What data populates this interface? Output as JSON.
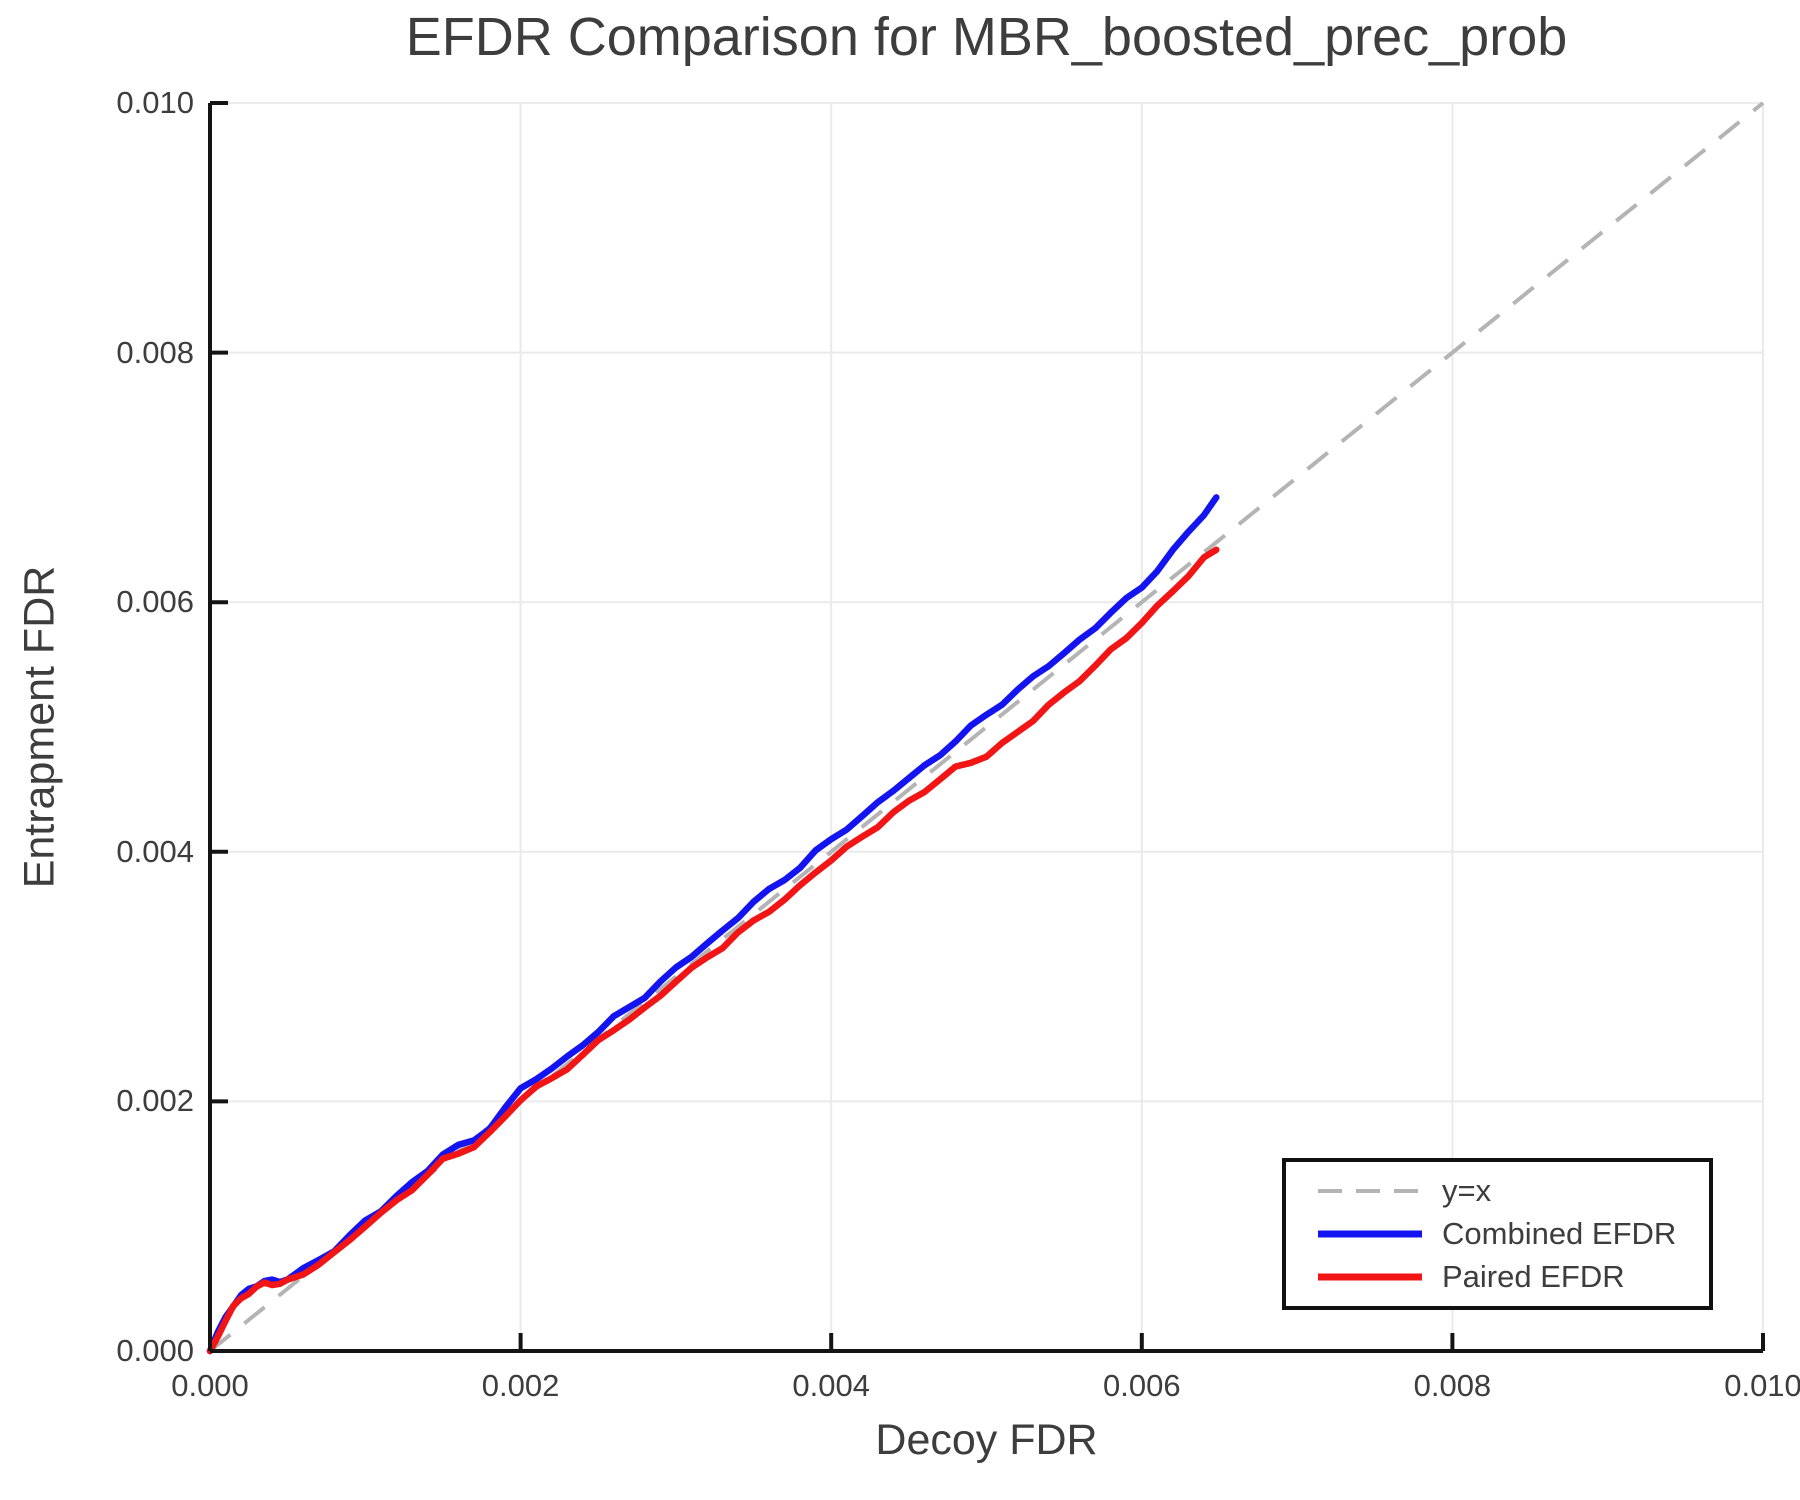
{
  "title": "EFDR Comparison for MBR_boosted_prec_prob",
  "colors": {
    "combined_line": "#1414f0",
    "paired_line": "#f21515",
    "reference_line": "#b4b4b4",
    "gridline": "#eaeaea",
    "spine": "#141414",
    "text": "#3d3d3d",
    "legend_border": "#111111",
    "background": "#ffffff"
  },
  "chart_data": {
    "type": "line",
    "title": "EFDR Comparison for MBR_boosted_prec_prob",
    "xlabel": "Decoy FDR",
    "ylabel": "Entrapment FDR",
    "xlim": [
      0.0,
      0.01
    ],
    "ylim": [
      0.0,
      0.01
    ],
    "grid": true,
    "legend_position": "lower right",
    "x_ticks": [
      0.0,
      0.002,
      0.004,
      0.006,
      0.008,
      0.01
    ],
    "y_ticks": [
      0.0,
      0.002,
      0.004,
      0.006,
      0.008,
      0.01
    ],
    "x_tick_labels": [
      "0.000",
      "0.002",
      "0.004",
      "0.006",
      "0.008",
      "0.010"
    ],
    "y_tick_labels": [
      "0.000",
      "0.002",
      "0.004",
      "0.006",
      "0.008",
      "0.010"
    ],
    "x": [
      0.0,
      5e-05,
      0.0001,
      0.00015,
      0.0002,
      0.00025,
      0.0003,
      0.00035,
      0.0004,
      0.00045,
      0.0005,
      0.0006,
      0.0007,
      0.0008,
      0.0009,
      0.001,
      0.0011,
      0.0012,
      0.0013,
      0.0014,
      0.0015,
      0.0016,
      0.0017,
      0.0018,
      0.0019,
      0.002,
      0.0021,
      0.0022,
      0.0023,
      0.0024,
      0.0025,
      0.0026,
      0.0027,
      0.0028,
      0.0029,
      0.003,
      0.0031,
      0.0032,
      0.0033,
      0.0034,
      0.0035,
      0.0036,
      0.0037,
      0.0038,
      0.0039,
      0.004,
      0.0041,
      0.0042,
      0.0043,
      0.0044,
      0.0045,
      0.0046,
      0.0047,
      0.0048,
      0.0049,
      0.005,
      0.0051,
      0.0052,
      0.0053,
      0.0054,
      0.0055,
      0.0056,
      0.0057,
      0.0058,
      0.0059,
      0.006,
      0.0061,
      0.0062,
      0.0063,
      0.0064,
      0.00648
    ],
    "series": [
      {
        "name": "y=x",
        "style": "dashed",
        "color": "#b4b4b4",
        "identity": true
      },
      {
        "name": "Combined EFDR",
        "style": "solid",
        "color": "#1414f0",
        "y": [
          0.0,
          0.00014,
          0.00027,
          0.00037,
          0.00044,
          0.00049,
          0.00053,
          0.00056,
          0.00056,
          0.00056,
          0.00058,
          0.00065,
          0.00073,
          0.00081,
          0.00092,
          0.00104,
          0.00113,
          0.00124,
          0.00134,
          0.00145,
          0.00158,
          0.00164,
          0.00169,
          0.00179,
          0.00194,
          0.0021,
          0.00219,
          0.00226,
          0.00235,
          0.00246,
          0.00256,
          0.00267,
          0.00276,
          0.00284,
          0.00295,
          0.00307,
          0.00317,
          0.00326,
          0.00336,
          0.00348,
          0.0036,
          0.00369,
          0.00378,
          0.00388,
          0.004,
          0.0041,
          0.00419,
          0.00428,
          0.00439,
          0.0045,
          0.00459,
          0.00468,
          0.00478,
          0.00489,
          0.005,
          0.0051,
          0.00519,
          0.00529,
          0.0054,
          0.0055,
          0.00559,
          0.00569,
          0.0058,
          0.00592,
          0.00602,
          0.00612,
          0.00626,
          0.00641,
          0.00656,
          0.00671,
          0.00684
        ]
      },
      {
        "name": "Paired EFDR",
        "style": "solid",
        "color": "#f21515",
        "y": [
          0.0,
          0.00012,
          0.00025,
          0.00035,
          0.00042,
          0.00047,
          0.00051,
          0.00054,
          0.00054,
          0.00054,
          0.00056,
          0.00062,
          0.0007,
          0.00078,
          0.00089,
          0.00101,
          0.0011,
          0.0012,
          0.0013,
          0.00141,
          0.00153,
          0.00159,
          0.00164,
          0.00174,
          0.00188,
          0.00202,
          0.00211,
          0.00218,
          0.00227,
          0.00237,
          0.00248,
          0.00258,
          0.00266,
          0.00274,
          0.00285,
          0.00297,
          0.00306,
          0.00315,
          0.00324,
          0.00335,
          0.00344,
          0.00353,
          0.00362,
          0.00372,
          0.00384,
          0.00394,
          0.00403,
          0.00412,
          0.00421,
          0.00431,
          0.0044,
          0.00449,
          0.00458,
          0.00467,
          0.00472,
          0.00477,
          0.00486,
          0.00496,
          0.00506,
          0.00517,
          0.00527,
          0.00538,
          0.00549,
          0.00561,
          0.00572,
          0.00584,
          0.00596,
          0.00609,
          0.00622,
          0.00635,
          0.00642
        ]
      }
    ]
  }
}
